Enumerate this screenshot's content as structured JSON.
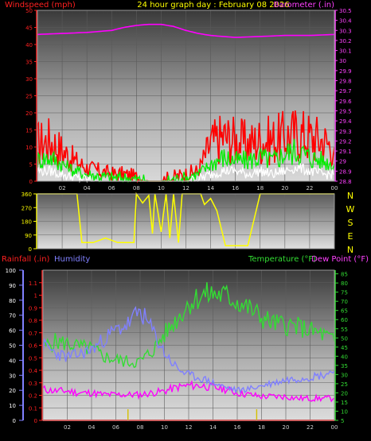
{
  "header": {
    "windspeed_label": "Windspeed (mph)",
    "title": "24 hour graph day : February 08 2026",
    "barometer_label": "Barometer (.in)"
  },
  "colors": {
    "wind_red": "#ff0000",
    "wind_green": "#00ee00",
    "wind_white": "#ffffff",
    "barometer": "#ff00ff",
    "direction": "#ffff00",
    "rain": "#ff2222",
    "humidity": "#8080ff",
    "temperature": "#33dd33",
    "dewpoint": "#ff00ff"
  },
  "chart_data": [
    {
      "type": "line",
      "name": "wind-barometer",
      "x_ticks": [
        "02",
        "04",
        "06",
        "08",
        "10",
        "12",
        "14",
        "16",
        "18",
        "20",
        "22",
        "00"
      ],
      "left_axis": {
        "label": "Windspeed (mph)",
        "ticks": [
          0,
          5,
          10,
          15,
          20,
          25,
          30,
          35,
          40,
          45,
          50
        ],
        "range": [
          0,
          50
        ]
      },
      "right_axis": {
        "label": "Barometer (.in)",
        "ticks": [
          "28.8",
          "28.9",
          "29",
          "29.1",
          "29.2",
          "29.3",
          "29.4",
          "29.5",
          "29.6",
          "29.7",
          "29.8",
          "29.9",
          "30",
          "30.1",
          "30.2",
          "30.3",
          "30.4",
          "30.5"
        ],
        "range": [
          28.8,
          30.5
        ]
      },
      "series": [
        {
          "name": "Gust",
          "x": [
            0,
            1,
            2,
            3,
            4,
            5,
            6,
            7,
            8,
            9,
            10,
            11,
            12,
            13,
            14,
            15,
            16,
            17,
            18,
            19,
            20,
            21,
            22,
            23,
            24
          ],
          "values": [
            11,
            12,
            9,
            6,
            4,
            3,
            2,
            2,
            1,
            0,
            0,
            1,
            2,
            3,
            11,
            13,
            12,
            11,
            12,
            12,
            13,
            14,
            13,
            12,
            10
          ]
        },
        {
          "name": "Average",
          "x": [
            0,
            1,
            2,
            3,
            4,
            5,
            6,
            7,
            8,
            9,
            10,
            11,
            12,
            13,
            14,
            15,
            16,
            17,
            18,
            19,
            20,
            21,
            22,
            23,
            24
          ],
          "values": [
            6,
            7,
            5,
            3,
            2,
            1.5,
            1,
            1,
            0.5,
            0,
            0,
            0.5,
            1,
            2,
            5,
            7,
            6,
            6,
            7,
            6,
            8,
            9,
            7,
            6,
            5
          ]
        },
        {
          "name": "Low",
          "x": [
            0,
            1,
            2,
            3,
            4,
            5,
            6,
            7,
            8,
            9,
            10,
            11,
            12,
            13,
            14,
            15,
            16,
            17,
            18,
            19,
            20,
            21,
            22,
            23,
            24
          ],
          "values": [
            3,
            3,
            2,
            1,
            0.5,
            0,
            0,
            0,
            0,
            0,
            0,
            0,
            0,
            0.5,
            2,
            3,
            3,
            2,
            3,
            2,
            3,
            4,
            3,
            2,
            2
          ]
        },
        {
          "name": "Barometer",
          "x": [
            0,
            2,
            4,
            6,
            7,
            8,
            9,
            10,
            11,
            12,
            13,
            14,
            15,
            16,
            18,
            20,
            22,
            24
          ],
          "values": [
            30.26,
            30.27,
            30.28,
            30.3,
            30.33,
            30.35,
            30.36,
            30.36,
            30.34,
            30.3,
            30.27,
            30.25,
            30.24,
            30.23,
            30.24,
            30.25,
            30.25,
            30.26
          ]
        }
      ]
    },
    {
      "type": "line",
      "name": "wind-direction",
      "x_ticks": [],
      "left_axis": {
        "ticks": [
          0,
          90,
          180,
          270,
          360
        ],
        "range": [
          0,
          360
        ]
      },
      "compass": [
        "N",
        "W",
        "S",
        "E",
        "N"
      ],
      "series": [
        {
          "name": "Direction",
          "x": [
            0,
            3,
            3.2,
            3.6,
            4.5,
            5.5,
            6.5,
            7.8,
            8,
            8.5,
            9,
            9.3,
            9.5,
            10,
            10.4,
            10.7,
            11,
            11.4,
            11.7,
            12,
            13.2,
            13.5,
            14,
            14.5,
            15.2,
            16,
            17,
            18,
            24
          ],
          "values": [
            360,
            360,
            360,
            40,
            40,
            70,
            40,
            40,
            360,
            300,
            350,
            100,
            360,
            110,
            360,
            70,
            360,
            40,
            360,
            360,
            360,
            290,
            330,
            250,
            20,
            20,
            20,
            360,
            360
          ]
        }
      ]
    },
    {
      "type": "line",
      "name": "rain-humidity-temperature",
      "header": {
        "rainfall_label": "Rainfall (.in)",
        "humidity_label": "Humidity",
        "temperature_label": "Temperature (°F)",
        "dewpoint_label": "Dew Point (°F)"
      },
      "x_ticks": [
        "02",
        "04",
        "06",
        "08",
        "10",
        "12",
        "14",
        "16",
        "18",
        "20",
        "22",
        "00"
      ],
      "humidity_axis": {
        "ticks": [
          0,
          10,
          20,
          30,
          40,
          50,
          60,
          70,
          80,
          90,
          100
        ],
        "range": [
          0,
          100
        ]
      },
      "rain_axis": {
        "ticks": [
          "0",
          "0.1",
          "0.2",
          "0.3",
          "0.4",
          "0.5",
          "0.6",
          "0.7",
          "0.8",
          "0.9",
          "1",
          "1.1"
        ],
        "range": [
          0,
          1.2
        ]
      },
      "temp_axis": {
        "ticks": [
          5,
          10,
          15,
          20,
          25,
          30,
          35,
          40,
          45,
          50,
          55,
          60,
          65,
          70,
          75,
          80,
          85
        ],
        "range": [
          5,
          87
        ]
      },
      "series": [
        {
          "name": "Temperature",
          "x": [
            0,
            1,
            2,
            3,
            4,
            5,
            6,
            7,
            8,
            9,
            10,
            11,
            12,
            13,
            14,
            15,
            16,
            17,
            18,
            19,
            20,
            21,
            22,
            23,
            24
          ],
          "values": [
            45,
            48,
            47,
            45,
            44,
            40,
            38,
            37,
            37,
            43,
            52,
            60,
            69,
            73,
            74,
            73,
            70,
            66,
            61,
            58,
            57,
            56,
            54,
            52,
            48
          ]
        },
        {
          "name": "Dew Point",
          "x": [
            0,
            1,
            2,
            3,
            4,
            5,
            6,
            7,
            8,
            9,
            10,
            11,
            12,
            13,
            14,
            15,
            16,
            17,
            18,
            19,
            20,
            21,
            22,
            23,
            24
          ],
          "values": [
            22,
            21,
            21,
            20,
            20,
            19,
            19,
            19,
            19,
            20,
            21,
            23,
            24,
            24,
            23,
            22,
            20,
            19,
            18,
            18,
            18,
            17,
            17,
            17,
            17
          ]
        },
        {
          "name": "Humidity",
          "x": [
            0,
            1,
            2,
            3,
            4,
            5,
            6,
            7,
            8,
            9,
            10,
            11,
            12,
            13,
            14,
            15,
            16,
            17,
            18,
            19,
            20,
            21,
            22,
            23,
            24
          ],
          "values": [
            50,
            45,
            42,
            44,
            47,
            54,
            60,
            64,
            73,
            60,
            45,
            35,
            30,
            28,
            25,
            22,
            20,
            21,
            23,
            25,
            27,
            28,
            29,
            30,
            33
          ]
        },
        {
          "name": "Rainfall",
          "x": [
            0,
            24
          ],
          "values": [
            0,
            0
          ]
        }
      ],
      "rain_markers_x": [
        7,
        17.6
      ]
    }
  ]
}
